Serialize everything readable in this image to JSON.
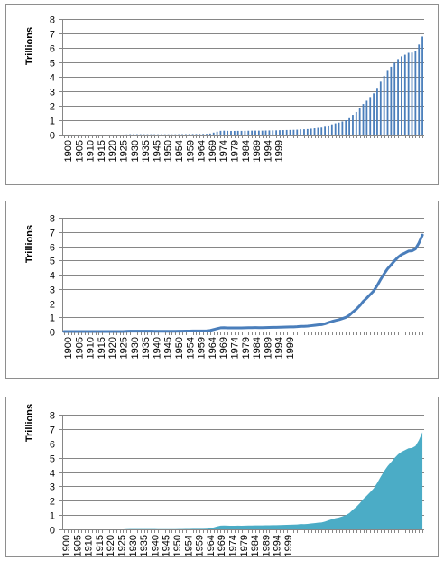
{
  "chart_data": [
    {
      "type": "bar",
      "ylabel": "Trillions",
      "ylim": [
        0,
        8
      ],
      "yticks": [
        0,
        1,
        2,
        3,
        4,
        5,
        6,
        7,
        8
      ],
      "x_tick_labels": [
        "1900",
        "1905",
        "1910",
        "1915",
        "1920",
        "1925",
        "1930",
        "1935",
        "1945",
        "1950",
        "1954",
        "1959",
        "1964",
        "1969",
        "1974",
        "1979",
        "1984",
        "1989",
        "1994",
        "1999"
      ],
      "grid": true,
      "legend": "none",
      "color": "#4a7ebb",
      "series": [
        {
          "name": "",
          "x": [
            1900,
            1901,
            1902,
            1903,
            1904,
            1905,
            1906,
            1907,
            1908,
            1909,
            1910,
            1911,
            1912,
            1913,
            1914,
            1915,
            1916,
            1917,
            1918,
            1919,
            1920,
            1921,
            1922,
            1923,
            1924,
            1925,
            1926,
            1927,
            1928,
            1929,
            1930,
            1931,
            1932,
            1933,
            1934,
            1935,
            1936,
            1937,
            1938,
            1939,
            1940,
            1941,
            1942,
            1943,
            1944,
            1945,
            1946,
            1947,
            1948,
            1949,
            1950,
            1951,
            1952,
            1953,
            1954,
            1955,
            1956,
            1957,
            1958,
            1959,
            1960,
            1961,
            1962,
            1963,
            1964,
            1965,
            1966,
            1967,
            1968,
            1969,
            1970,
            1971,
            1972,
            1973,
            1974,
            1975,
            1976,
            1977,
            1978,
            1979,
            1980,
            1981,
            1982,
            1983,
            1984,
            1985,
            1986,
            1987,
            1988,
            1989,
            1990,
            1991,
            1992,
            1993,
            1994,
            1995,
            1996,
            1997,
            1998,
            1999,
            2000,
            2001,
            2002,
            2003
          ],
          "values": [
            0.001,
            0.001,
            0.001,
            0.001,
            0.001,
            0.001,
            0.001,
            0.001,
            0.001,
            0.001,
            0.001,
            0.001,
            0.001,
            0.001,
            0.001,
            0.001,
            0.001,
            0.003,
            0.012,
            0.025,
            0.026,
            0.024,
            0.023,
            0.022,
            0.021,
            0.021,
            0.02,
            0.018,
            0.018,
            0.017,
            0.016,
            0.017,
            0.019,
            0.023,
            0.027,
            0.029,
            0.034,
            0.036,
            0.037,
            0.04,
            0.043,
            0.049,
            0.072,
            0.137,
            0.201,
            0.259,
            0.269,
            0.258,
            0.252,
            0.253,
            0.257,
            0.255,
            0.259,
            0.266,
            0.271,
            0.274,
            0.273,
            0.272,
            0.28,
            0.287,
            0.291,
            0.293,
            0.303,
            0.31,
            0.316,
            0.322,
            0.328,
            0.34,
            0.368,
            0.366,
            0.381,
            0.408,
            0.436,
            0.466,
            0.484,
            0.542,
            0.629,
            0.706,
            0.776,
            0.829,
            0.909,
            0.995,
            1.137,
            1.372,
            1.565,
            1.817,
            2.121,
            2.346,
            2.602,
            2.857,
            3.233,
            3.665,
            4.065,
            4.411,
            4.693,
            4.974,
            5.225,
            5.413,
            5.526,
            5.656,
            5.674,
            5.807,
            6.228,
            6.783
          ]
        }
      ]
    },
    {
      "type": "line",
      "ylabel": "Trillions",
      "ylim": [
        0,
        8
      ],
      "yticks": [
        0,
        1,
        2,
        3,
        4,
        5,
        6,
        7,
        8
      ],
      "x_tick_labels": [
        "1900",
        "1905",
        "1910",
        "1915",
        "1920",
        "1925",
        "1930",
        "1935",
        "1940",
        "1945",
        "1950",
        "1954",
        "1959",
        "1964",
        "1969",
        "1974",
        "1979",
        "1984",
        "1989",
        "1994",
        "1999"
      ],
      "grid": true,
      "legend": "none",
      "color": "#4a7ebb",
      "series": [
        {
          "name": "",
          "x": [
            1900,
            1901,
            1902,
            1903,
            1904,
            1905,
            1906,
            1907,
            1908,
            1909,
            1910,
            1911,
            1912,
            1913,
            1914,
            1915,
            1916,
            1917,
            1918,
            1919,
            1920,
            1921,
            1922,
            1923,
            1924,
            1925,
            1926,
            1927,
            1928,
            1929,
            1930,
            1931,
            1932,
            1933,
            1934,
            1935,
            1936,
            1937,
            1938,
            1939,
            1940,
            1941,
            1942,
            1943,
            1944,
            1945,
            1946,
            1947,
            1948,
            1949,
            1950,
            1951,
            1952,
            1953,
            1954,
            1955,
            1956,
            1957,
            1958,
            1959,
            1960,
            1961,
            1962,
            1963,
            1964,
            1965,
            1966,
            1967,
            1968,
            1969,
            1970,
            1971,
            1972,
            1973,
            1974,
            1975,
            1976,
            1977,
            1978,
            1979,
            1980,
            1981,
            1982,
            1983,
            1984,
            1985,
            1986,
            1987,
            1988,
            1989,
            1990,
            1991,
            1992,
            1993,
            1994,
            1995,
            1996,
            1997,
            1998,
            1999,
            2000,
            2001,
            2002,
            2003
          ],
          "values": [
            0.001,
            0.001,
            0.001,
            0.001,
            0.001,
            0.001,
            0.001,
            0.001,
            0.001,
            0.001,
            0.001,
            0.001,
            0.001,
            0.001,
            0.001,
            0.001,
            0.001,
            0.003,
            0.012,
            0.025,
            0.026,
            0.024,
            0.023,
            0.022,
            0.021,
            0.021,
            0.02,
            0.018,
            0.018,
            0.017,
            0.016,
            0.017,
            0.019,
            0.023,
            0.027,
            0.029,
            0.034,
            0.036,
            0.037,
            0.04,
            0.043,
            0.049,
            0.072,
            0.137,
            0.201,
            0.259,
            0.269,
            0.258,
            0.252,
            0.253,
            0.257,
            0.255,
            0.259,
            0.266,
            0.271,
            0.274,
            0.273,
            0.272,
            0.28,
            0.287,
            0.291,
            0.293,
            0.303,
            0.31,
            0.316,
            0.322,
            0.328,
            0.34,
            0.368,
            0.366,
            0.381,
            0.408,
            0.436,
            0.466,
            0.484,
            0.542,
            0.629,
            0.706,
            0.776,
            0.829,
            0.909,
            0.995,
            1.137,
            1.372,
            1.565,
            1.817,
            2.121,
            2.346,
            2.602,
            2.857,
            3.233,
            3.665,
            4.065,
            4.411,
            4.693,
            4.974,
            5.225,
            5.413,
            5.526,
            5.656,
            5.674,
            5.807,
            6.228,
            6.783
          ]
        }
      ]
    },
    {
      "type": "area",
      "ylabel": "Trillions",
      "ylim": [
        0,
        8
      ],
      "yticks": [
        0,
        1,
        2,
        3,
        4,
        5,
        6,
        7,
        8
      ],
      "x_tick_labels": [
        "1900",
        "1905",
        "1910",
        "1915",
        "1920",
        "1925",
        "1930",
        "1935",
        "1940",
        "1945",
        "1950",
        "1954",
        "1959",
        "1964",
        "1969",
        "1974",
        "1979",
        "1984",
        "1989",
        "1994",
        "1999"
      ],
      "grid": true,
      "legend": "none",
      "color": "#4bacc6",
      "series": [
        {
          "name": "",
          "x": [
            1900,
            1901,
            1902,
            1903,
            1904,
            1905,
            1906,
            1907,
            1908,
            1909,
            1910,
            1911,
            1912,
            1913,
            1914,
            1915,
            1916,
            1917,
            1918,
            1919,
            1920,
            1921,
            1922,
            1923,
            1924,
            1925,
            1926,
            1927,
            1928,
            1929,
            1930,
            1931,
            1932,
            1933,
            1934,
            1935,
            1936,
            1937,
            1938,
            1939,
            1940,
            1941,
            1942,
            1943,
            1944,
            1945,
            1946,
            1947,
            1948,
            1949,
            1950,
            1951,
            1952,
            1953,
            1954,
            1955,
            1956,
            1957,
            1958,
            1959,
            1960,
            1961,
            1962,
            1963,
            1964,
            1965,
            1966,
            1967,
            1968,
            1969,
            1970,
            1971,
            1972,
            1973,
            1974,
            1975,
            1976,
            1977,
            1978,
            1979,
            1980,
            1981,
            1982,
            1983,
            1984,
            1985,
            1986,
            1987,
            1988,
            1989,
            1990,
            1991,
            1992,
            1993,
            1994,
            1995,
            1996,
            1997,
            1998,
            1999,
            2000,
            2001,
            2002,
            2003
          ],
          "values": [
            0.001,
            0.001,
            0.001,
            0.001,
            0.001,
            0.001,
            0.001,
            0.001,
            0.001,
            0.001,
            0.001,
            0.001,
            0.001,
            0.001,
            0.001,
            0.001,
            0.001,
            0.003,
            0.012,
            0.025,
            0.026,
            0.024,
            0.023,
            0.022,
            0.021,
            0.021,
            0.02,
            0.018,
            0.018,
            0.017,
            0.016,
            0.017,
            0.019,
            0.023,
            0.027,
            0.029,
            0.034,
            0.036,
            0.037,
            0.04,
            0.043,
            0.049,
            0.072,
            0.137,
            0.201,
            0.259,
            0.269,
            0.258,
            0.252,
            0.253,
            0.257,
            0.255,
            0.259,
            0.266,
            0.271,
            0.274,
            0.273,
            0.272,
            0.28,
            0.287,
            0.291,
            0.293,
            0.303,
            0.31,
            0.316,
            0.322,
            0.328,
            0.34,
            0.368,
            0.366,
            0.381,
            0.408,
            0.436,
            0.466,
            0.484,
            0.542,
            0.629,
            0.706,
            0.776,
            0.829,
            0.909,
            0.995,
            1.137,
            1.372,
            1.565,
            1.817,
            2.121,
            2.346,
            2.602,
            2.857,
            3.233,
            3.665,
            4.065,
            4.411,
            4.693,
            4.974,
            5.225,
            5.413,
            5.526,
            5.656,
            5.674,
            5.807,
            6.228,
            6.783
          ]
        }
      ]
    }
  ]
}
